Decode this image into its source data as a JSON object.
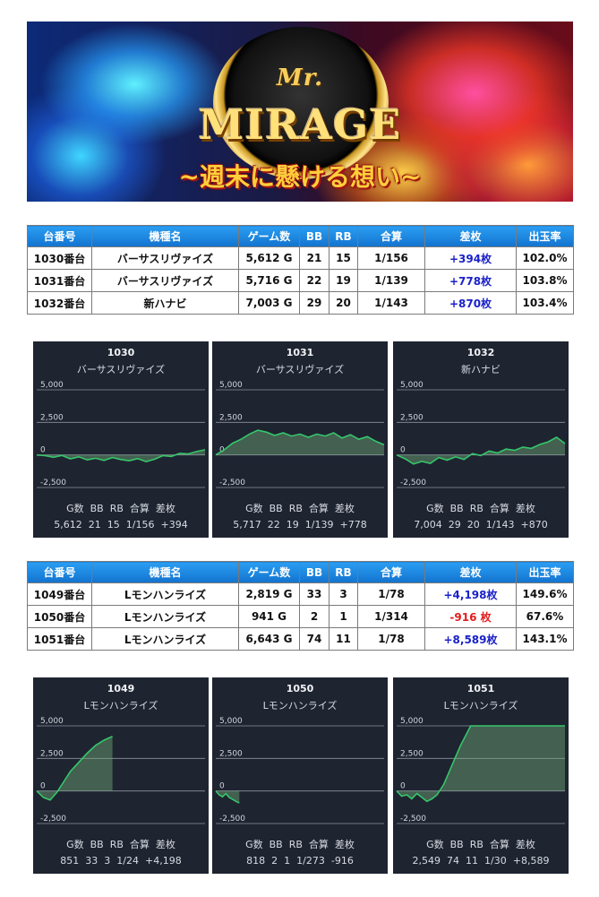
{
  "banner": {
    "mr": "Mr.",
    "logo": "MIRAGE",
    "tagline": "~週末に懸ける想い~"
  },
  "table_headers": [
    "台番号",
    "機種名",
    "ゲーム数",
    "BB",
    "RB",
    "合算",
    "差枚",
    "出玉率"
  ],
  "table1": [
    {
      "num": "1030番台",
      "machine": "バーサスリヴァイズ",
      "games": "5,612 G",
      "bb": "21",
      "rb": "15",
      "ratio": "1/156",
      "diff": "+394枚",
      "rate": "102.0%",
      "sign": "pos"
    },
    {
      "num": "1031番台",
      "machine": "バーサスリヴァイズ",
      "games": "5,716 G",
      "bb": "22",
      "rb": "19",
      "ratio": "1/139",
      "diff": "+778枚",
      "rate": "103.8%",
      "sign": "pos"
    },
    {
      "num": "1032番台",
      "machine": "新ハナビ",
      "games": "7,003 G",
      "bb": "29",
      "rb": "20",
      "ratio": "1/143",
      "diff": "+870枚",
      "rate": "103.4%",
      "sign": "pos"
    }
  ],
  "table2": [
    {
      "num": "1049番台",
      "machine": "Lモンハンライズ",
      "games": "2,819 G",
      "bb": "33",
      "rb": "3",
      "ratio": "1/78",
      "diff": "+4,198枚",
      "rate": "149.6%",
      "sign": "pos"
    },
    {
      "num": "1050番台",
      "machine": "Lモンハンライズ",
      "games": "941 G",
      "bb": "2",
      "rb": "1",
      "ratio": "1/314",
      "diff": "-916 枚",
      "rate": "67.6%",
      "sign": "neg"
    },
    {
      "num": "1051番台",
      "machine": "Lモンハンライズ",
      "games": "6,643 G",
      "bb": "74",
      "rb": "11",
      "ratio": "1/78",
      "diff": "+8,589枚",
      "rate": "143.1%",
      "sign": "pos"
    }
  ],
  "stat_headers": [
    "G数",
    "BB",
    "RB",
    "合算",
    "差枚"
  ],
  "panels1": [
    {
      "id": "1030",
      "name": "バーサスリヴァイズ",
      "g": "5,612",
      "bb": "21",
      "rb": "15",
      "ratio": "1/156",
      "diff": "+394"
    },
    {
      "id": "1031",
      "name": "バーサスリヴァイズ",
      "g": "5,717",
      "bb": "22",
      "rb": "19",
      "ratio": "1/139",
      "diff": "+778"
    },
    {
      "id": "1032",
      "name": "新ハナビ",
      "g": "7,004",
      "bb": "29",
      "rb": "20",
      "ratio": "1/143",
      "diff": "+870"
    }
  ],
  "panels2": [
    {
      "id": "1049",
      "name": "Lモンハンライズ",
      "g": "851",
      "bb": "33",
      "rb": "3",
      "ratio": "1/24",
      "diff": "+4,198"
    },
    {
      "id": "1050",
      "name": "Lモンハンライズ",
      "g": "818",
      "bb": "2",
      "rb": "1",
      "ratio": "1/273",
      "diff": "-916"
    },
    {
      "id": "1051",
      "name": "Lモンハンライズ",
      "g": "2,549",
      "bb": "74",
      "rb": "11",
      "ratio": "1/30",
      "diff": "+8,589"
    }
  ],
  "chart_data": [
    {
      "type": "area",
      "title": "1030",
      "ytick_labels": [
        "5,000",
        "2,500",
        "0",
        "-2,500"
      ],
      "ylim": [
        -2500,
        5000
      ],
      "x": [
        0,
        0.05,
        0.1,
        0.15,
        0.2,
        0.25,
        0.3,
        0.35,
        0.4,
        0.45,
        0.5,
        0.55,
        0.6,
        0.65,
        0.7,
        0.75,
        0.8,
        0.85,
        0.9,
        0.95,
        1.0
      ],
      "values": [
        0,
        -60,
        -180,
        -40,
        -300,
        -150,
        -380,
        -260,
        -420,
        -200,
        -350,
        -450,
        -280,
        -520,
        -330,
        -60,
        -120,
        120,
        80,
        260,
        394
      ]
    },
    {
      "type": "area",
      "title": "1031",
      "ytick_labels": [
        "5,000",
        "2,500",
        "0",
        "-2,500"
      ],
      "ylim": [
        -2500,
        5000
      ],
      "x": [
        0,
        0.05,
        0.1,
        0.15,
        0.2,
        0.25,
        0.3,
        0.35,
        0.4,
        0.45,
        0.5,
        0.55,
        0.6,
        0.65,
        0.7,
        0.75,
        0.8,
        0.85,
        0.9,
        0.95,
        1.0
      ],
      "values": [
        0,
        400,
        900,
        1200,
        1600,
        1900,
        1750,
        1500,
        1700,
        1450,
        1600,
        1350,
        1600,
        1450,
        1700,
        1300,
        1550,
        1200,
        1400,
        1050,
        778
      ]
    },
    {
      "type": "area",
      "title": "1032",
      "ytick_labels": [
        "5,000",
        "2,500",
        "0",
        "-2,500"
      ],
      "ylim": [
        -2500,
        5000
      ],
      "x": [
        0,
        0.05,
        0.1,
        0.15,
        0.2,
        0.25,
        0.3,
        0.35,
        0.4,
        0.45,
        0.5,
        0.55,
        0.6,
        0.65,
        0.7,
        0.75,
        0.8,
        0.85,
        0.9,
        0.95,
        1.0
      ],
      "values": [
        0,
        -300,
        -700,
        -500,
        -650,
        -200,
        -400,
        -150,
        -350,
        100,
        -50,
        300,
        150,
        450,
        350,
        600,
        500,
        800,
        1000,
        1350,
        870
      ]
    },
    {
      "type": "area",
      "title": "1049",
      "ytick_labels": [
        "5,000",
        "2,500",
        "0",
        "-2,500"
      ],
      "ylim": [
        -2500,
        5000
      ],
      "x": [
        0,
        0.04,
        0.08,
        0.12,
        0.16,
        0.2,
        0.25,
        0.3,
        0.35,
        0.4,
        0.45
      ],
      "values": [
        0,
        -500,
        -700,
        -100,
        700,
        1500,
        2200,
        2900,
        3500,
        3900,
        4198
      ]
    },
    {
      "type": "area",
      "title": "1050",
      "ytick_labels": [
        "5,000",
        "2,500",
        "0",
        "-2,500"
      ],
      "ylim": [
        -2500,
        5000
      ],
      "x": [
        0,
        0.02,
        0.04,
        0.06,
        0.08,
        0.1,
        0.12,
        0.14
      ],
      "values": [
        0,
        -300,
        -450,
        -200,
        -500,
        -650,
        -800,
        -916
      ]
    },
    {
      "type": "area",
      "title": "1051",
      "ytick_labels": [
        "5,000",
        "2,500",
        "0",
        "-2,500"
      ],
      "ylim": [
        -2500,
        5000
      ],
      "x": [
        0,
        0.03,
        0.06,
        0.09,
        0.12,
        0.15,
        0.18,
        0.21,
        0.24,
        0.28,
        0.33,
        0.38,
        0.44,
        0.5,
        0.55,
        0.6,
        0.65,
        0.7,
        0.75,
        0.8,
        0.85,
        0.9,
        0.95,
        1.0
      ],
      "values": [
        0,
        -400,
        -300,
        -600,
        -200,
        -500,
        -800,
        -600,
        -300,
        500,
        2000,
        3500,
        5000,
        5000,
        5000,
        5000,
        5000,
        5000,
        5000,
        5000,
        5000,
        5000,
        5000,
        5000
      ]
    }
  ]
}
